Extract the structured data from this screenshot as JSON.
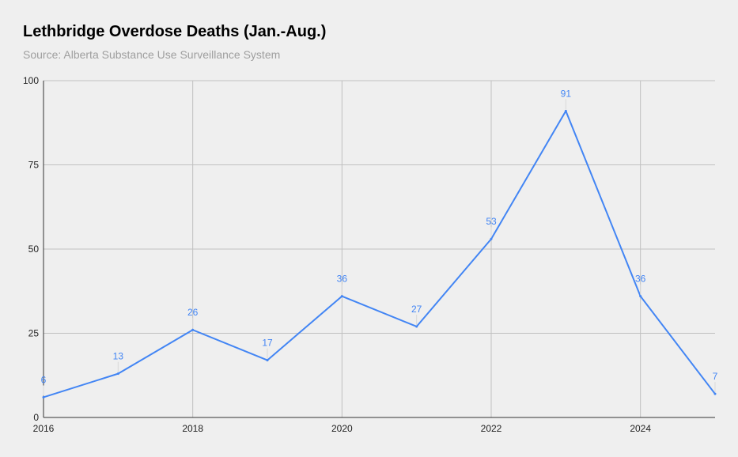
{
  "chart_data": {
    "type": "line",
    "title": "Lethbridge Overdose Deaths (Jan.-Aug.)",
    "subtitle": "Source: Alberta Substance Use Surveillance System",
    "xlabel": "",
    "ylabel": "",
    "x": [
      2016,
      2017,
      2018,
      2019,
      2020,
      2021,
      2022,
      2023,
      2024,
      2025
    ],
    "series": [
      {
        "values": [
          6,
          13,
          26,
          17,
          36,
          27,
          53,
          91,
          36,
          7
        ],
        "color": "#4285f4"
      }
    ],
    "xlim": [
      2016,
      2025
    ],
    "ylim": [
      0,
      100
    ],
    "x_ticks": [
      "2016",
      "2018",
      "2020",
      "2022",
      "2024"
    ],
    "y_ticks": [
      "0",
      "25",
      "50",
      "75",
      "100"
    ],
    "grid": true,
    "legend": "none",
    "data_labels": true
  }
}
